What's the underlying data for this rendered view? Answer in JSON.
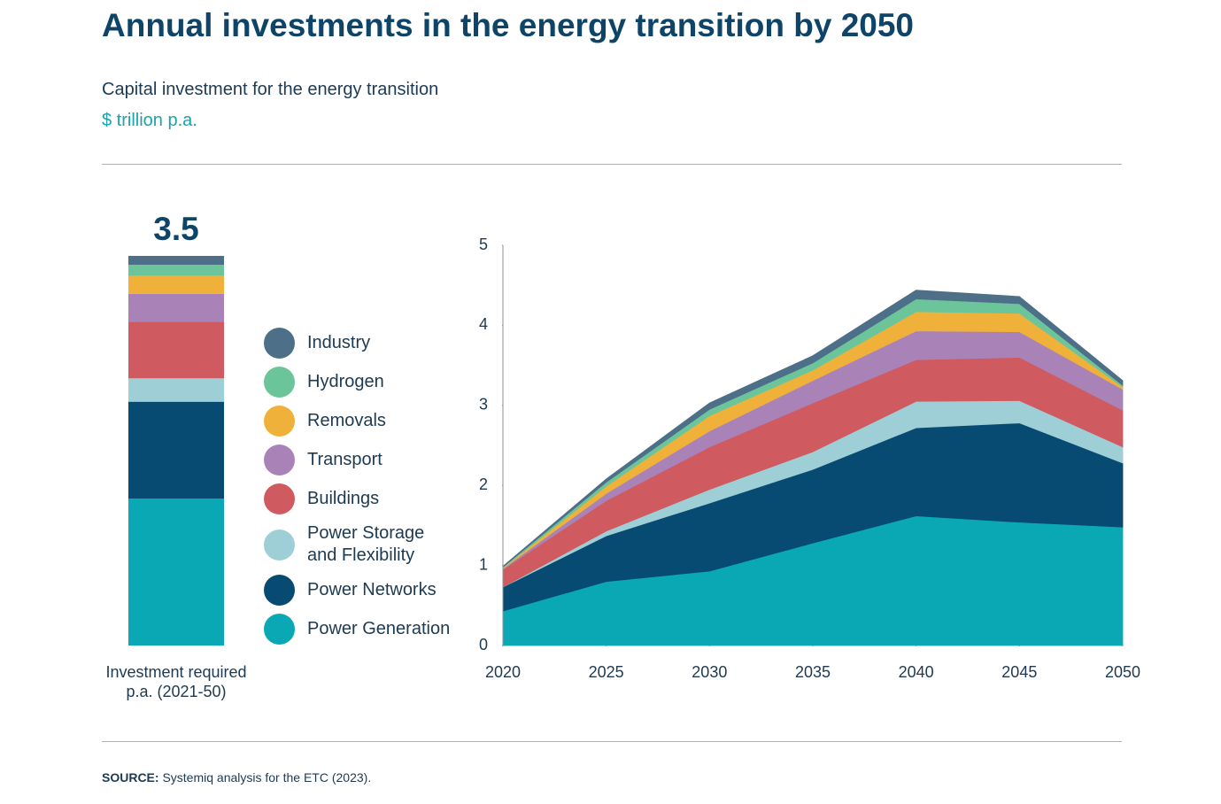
{
  "title": "Annual investments in the energy transition by 2050",
  "subtitle": "Capital investment for the energy transition",
  "unit": "$ trillion p.a.",
  "source_label": "SOURCE:",
  "source": "Systemiq analysis for the ETC (2023).",
  "chart_data": [
    {
      "type": "bar",
      "total": 3.5,
      "categories": [
        "Investment required p.a. (2021-50)"
      ],
      "series": [
        {
          "name": "Power Generation",
          "color": "#0aa8b5",
          "values": [
            1.32
          ]
        },
        {
          "name": "Power Networks",
          "color": "#074a72",
          "values": [
            0.87
          ]
        },
        {
          "name": "Power Storage and Flexibility",
          "color": "#9fcfd6",
          "values": [
            0.21
          ]
        },
        {
          "name": "Buildings",
          "color": "#cf5a5f",
          "values": [
            0.51
          ]
        },
        {
          "name": "Transport",
          "color": "#a983b8",
          "values": [
            0.25
          ]
        },
        {
          "name": "Removals",
          "color": "#f0b13a",
          "values": [
            0.16
          ]
        },
        {
          "name": "Hydrogen",
          "color": "#6cc59a",
          "values": [
            0.1
          ]
        },
        {
          "name": "Industry",
          "color": "#4d6f88",
          "values": [
            0.08
          ]
        }
      ]
    },
    {
      "type": "area",
      "x": [
        2020,
        2025,
        2030,
        2035,
        2040,
        2045,
        2050
      ],
      "xlim": [
        2020,
        2050
      ],
      "xticks": [
        2020,
        2025,
        2030,
        2035,
        2040,
        2045,
        2050
      ],
      "ylim": [
        0,
        5
      ],
      "yticks": [
        0,
        1,
        2,
        3,
        4,
        5
      ],
      "series": [
        {
          "name": "Power Generation",
          "color": "#0aa8b5",
          "values": [
            0.43,
            0.8,
            0.93,
            1.28,
            1.62,
            1.54,
            1.48
          ]
        },
        {
          "name": "Power Networks",
          "color": "#074a72",
          "values": [
            0.3,
            0.57,
            0.85,
            0.92,
            1.1,
            1.24,
            0.8
          ]
        },
        {
          "name": "Power Storage and Flexibility",
          "color": "#9fcfd6",
          "values": [
            0.0,
            0.06,
            0.17,
            0.22,
            0.33,
            0.28,
            0.2
          ]
        },
        {
          "name": "Buildings",
          "color": "#cf5a5f",
          "values": [
            0.22,
            0.38,
            0.53,
            0.61,
            0.52,
            0.54,
            0.46
          ]
        },
        {
          "name": "Transport",
          "color": "#a983b8",
          "values": [
            0.01,
            0.09,
            0.2,
            0.28,
            0.36,
            0.32,
            0.26
          ]
        },
        {
          "name": "Removals",
          "color": "#f0b13a",
          "values": [
            0.01,
            0.09,
            0.19,
            0.13,
            0.24,
            0.23,
            0.03
          ]
        },
        {
          "name": "Hydrogen",
          "color": "#6cc59a",
          "values": [
            0.01,
            0.05,
            0.08,
            0.09,
            0.16,
            0.12,
            0.02
          ]
        },
        {
          "name": "Industry",
          "color": "#4d6f88",
          "values": [
            0.01,
            0.04,
            0.08,
            0.09,
            0.11,
            0.09,
            0.06
          ]
        }
      ]
    }
  ]
}
